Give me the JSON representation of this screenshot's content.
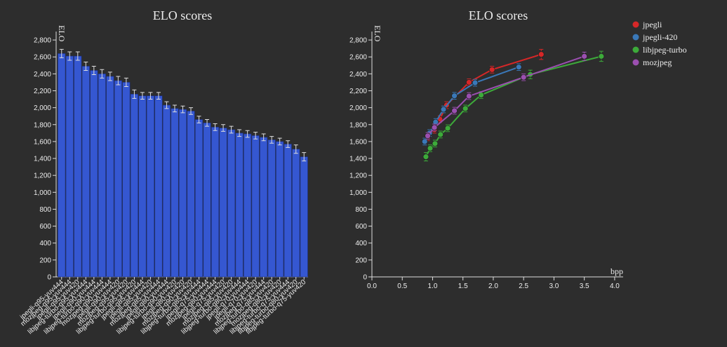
{
  "chart_data": [
    {
      "type": "bar",
      "title": "ELO scores",
      "ylabel": "ELO",
      "color": "#3557d1",
      "categories": [
        "jpegli-q95-yuv444",
        "mozjpeg-q95-yuv444",
        "jpegli-q95-yuv420",
        "libjpeg-turbo-q95-yuv444",
        "jpegli-q90-yuv444",
        "libjpeg-turbo-q90-yuv444",
        "mozjpeg-q90-yuv444",
        "jpegli-q90-yuv420",
        "mozjpeg-q95-yuv420",
        "libjpeg-turbo-q95-yuv420",
        "jpegli-q85-yuv444",
        "jpegli-q85-yuv420",
        "mozjpeg-q85-yuv444",
        "jpegli-q80-yuv444",
        "libjpeg-turbo-q90-yuv420",
        "jpegli-q80-yuv420",
        "mozjpeg-q90-yuv420",
        "libjpeg-turbo-q85-yuv444",
        "jpegli-q75-yuv444",
        "mozjpeg-q80-yuv444",
        "jpegli-q75-yuv420",
        "mozjpeg-q85-yuv420",
        "libjpeg-turbo-q80-yuv444",
        "jpegli-q70-yuv444",
        "jpegli-q70-yuv420",
        "mozjpeg-q75-yuv444",
        "libjpeg-turbo-q85-yuv420",
        "mozjpeg-q80-yuv420",
        "libjpeg-turbo-q75-yuv444",
        "libjpeg-turbo-q80-yuv420",
        "libjpeg-turbo-q75-yuv420"
      ],
      "values": [
        2640,
        2610,
        2610,
        2490,
        2440,
        2400,
        2370,
        2320,
        2300,
        2160,
        2140,
        2140,
        2140,
        2030,
        1990,
        1980,
        1960,
        1860,
        1820,
        1770,
        1760,
        1740,
        1700,
        1690,
        1670,
        1650,
        1620,
        1600,
        1570,
        1510,
        1420
      ],
      "errors": [
        50,
        50,
        50,
        50,
        50,
        50,
        50,
        50,
        50,
        50,
        40,
        40,
        40,
        40,
        40,
        40,
        40,
        40,
        40,
        40,
        40,
        40,
        40,
        40,
        40,
        40,
        40,
        40,
        40,
        50,
        50
      ],
      "ylim": [
        0,
        2900
      ],
      "yticks": [
        0,
        200,
        400,
        600,
        800,
        {
          "value": 1000,
          "label": "1,000"
        },
        {
          "value": 1200,
          "label": "1,200"
        },
        {
          "value": 1400,
          "label": "1,400"
        },
        {
          "value": 1600,
          "label": "1,600"
        },
        {
          "value": 1800,
          "label": "1,800"
        },
        {
          "value": 2000,
          "label": "2,000"
        },
        {
          "value": 2200,
          "label": "2,200"
        },
        {
          "value": 2400,
          "label": "2,400"
        },
        {
          "value": 2600,
          "label": "2,600"
        },
        {
          "value": 2800,
          "label": "2,800"
        }
      ]
    },
    {
      "type": "line",
      "title": "ELO scores",
      "ylabel": "ELO",
      "xlabel": "bpp",
      "legend": "top-right",
      "series": [
        {
          "name": "jpegli",
          "color": "#d62728",
          "x": [
            0.92,
            1.03,
            1.12,
            1.23,
            1.6,
            1.98,
            2.79
          ],
          "values": [
            1650,
            1740,
            1865,
            2030,
            2300,
            2450,
            2630
          ],
          "errors": [
            40,
            40,
            40,
            40,
            40,
            40,
            60
          ]
        },
        {
          "name": "jpegli-420",
          "color": "#3a78b8",
          "x": [
            0.87,
            0.95,
            1.05,
            1.18,
            1.36,
            1.7,
            2.42
          ],
          "values": [
            1600,
            1700,
            1830,
            1980,
            2140,
            2295,
            2480
          ],
          "errors": [
            40,
            40,
            40,
            40,
            40,
            40,
            40
          ]
        },
        {
          "name": "libjpeg-turbo",
          "color": "#3daa3a",
          "x": [
            0.89,
            0.96,
            1.04,
            1.13,
            1.25,
            1.54,
            1.8,
            2.61,
            3.78
          ],
          "values": [
            1420,
            1520,
            1576,
            1683,
            1757,
            1990,
            2150,
            2393,
            2607
          ],
          "errors": [
            50,
            40,
            40,
            40,
            40,
            40,
            40,
            50,
            60
          ]
        },
        {
          "name": "mozjpeg",
          "color": "#9b4fb0",
          "x": [
            0.92,
            1.03,
            1.36,
            1.6,
            2.5,
            3.5
          ],
          "values": [
            1667,
            1766,
            1964,
            2137,
            2360,
            2607
          ],
          "errors": [
            40,
            40,
            40,
            40,
            40,
            50
          ]
        }
      ],
      "xlim": [
        0,
        4.14
      ],
      "xticks": [
        {
          "value": 0,
          "label": "0.0"
        },
        0.5,
        {
          "value": 1,
          "label": "1.0"
        },
        1.5,
        {
          "value": 2,
          "label": "2.0"
        },
        2.5,
        {
          "value": 3,
          "label": "3.0"
        },
        3.5,
        {
          "value": 4,
          "label": "4.0"
        }
      ],
      "ylim": [
        0,
        2900
      ],
      "yticks": [
        0,
        200,
        400,
        600,
        800,
        {
          "value": 1000,
          "label": "1,000"
        },
        {
          "value": 1200,
          "label": "1,200"
        },
        {
          "value": 1400,
          "label": "1,400"
        },
        {
          "value": 1600,
          "label": "1,600"
        },
        {
          "value": 1800,
          "label": "1,800"
        },
        {
          "value": 2000,
          "label": "2,000"
        },
        {
          "value": 2200,
          "label": "2,200"
        },
        {
          "value": 2400,
          "label": "2,400"
        },
        {
          "value": 2600,
          "label": "2,600"
        },
        {
          "value": 2800,
          "label": "2,800"
        }
      ]
    }
  ]
}
